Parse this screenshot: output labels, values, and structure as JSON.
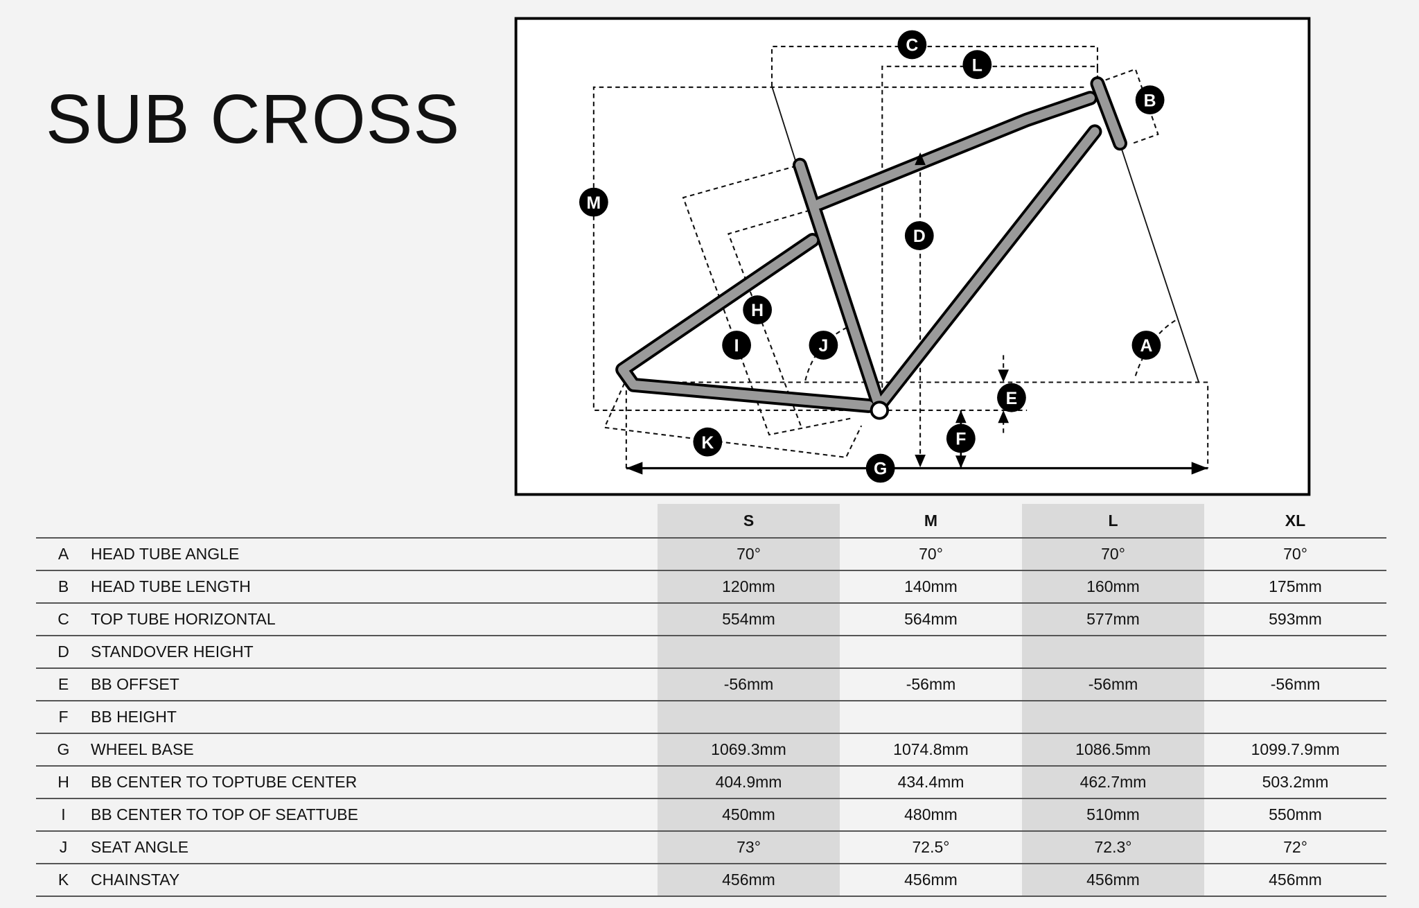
{
  "title": "SUB CROSS",
  "diagram": {
    "labels": {
      "A": "A",
      "B": "B",
      "C": "C",
      "D": "D",
      "E": "E",
      "F": "F",
      "G": "G",
      "H": "H",
      "I": "I",
      "J": "J",
      "K": "K",
      "L": "L",
      "M": "M"
    },
    "frame_color": "#9a9a9a"
  },
  "table": {
    "sizes": [
      "S",
      "M",
      "L",
      "XL"
    ],
    "rows": [
      {
        "letter": "A",
        "label": "HEAD TUBE ANGLE",
        "values": [
          "70°",
          "70°",
          "70°",
          "70°"
        ]
      },
      {
        "letter": "B",
        "label": "HEAD TUBE LENGTH",
        "values": [
          "120mm",
          "140mm",
          "160mm",
          "175mm"
        ]
      },
      {
        "letter": "C",
        "label": "TOP TUBE HORIZONTAL",
        "values": [
          "554mm",
          "564mm",
          "577mm",
          "593mm"
        ]
      },
      {
        "letter": "D",
        "label": "STANDOVER HEIGHT",
        "values": [
          "",
          "",
          "",
          ""
        ]
      },
      {
        "letter": "E",
        "label": "BB OFFSET",
        "values": [
          "-56mm",
          "-56mm",
          "-56mm",
          "-56mm"
        ]
      },
      {
        "letter": "F",
        "label": "BB HEIGHT",
        "values": [
          "",
          "",
          "",
          ""
        ]
      },
      {
        "letter": "G",
        "label": "WHEEL BASE",
        "values": [
          "1069.3mm",
          "1074.8mm",
          "1086.5mm",
          "1099.7.9mm"
        ]
      },
      {
        "letter": "H",
        "label": "BB CENTER TO TOPTUBE CENTER",
        "values": [
          "404.9mm",
          "434.4mm",
          "462.7mm",
          "503.2mm"
        ]
      },
      {
        "letter": "I",
        "label": "BB CENTER TO TOP OF SEATTUBE",
        "values": [
          "450mm",
          "480mm",
          "510mm",
          "550mm"
        ]
      },
      {
        "letter": "J",
        "label": "SEAT ANGLE",
        "values": [
          "73°",
          "72.5°",
          "72.3°",
          "72°"
        ]
      },
      {
        "letter": "K",
        "label": "CHAINSTAY",
        "values": [
          "456mm",
          "456mm",
          "456mm",
          "456mm"
        ]
      }
    ]
  }
}
